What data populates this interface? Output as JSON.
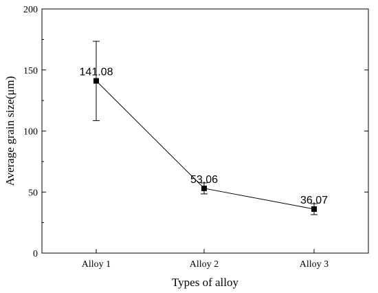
{
  "chart_data": {
    "type": "line",
    "categories": [
      "Alloy 1",
      "Alloy 2",
      "Alloy 3"
    ],
    "series": [
      {
        "values": [
          141.08,
          53.06,
          36.07
        ],
        "error_low": [
          108.5,
          48.5,
          31.5
        ],
        "error_high": [
          173.5,
          57.5,
          40.5
        ],
        "data_labels": [
          "141.08",
          "53.06",
          "36.07"
        ]
      }
    ],
    "xlabel": "Types of alloy",
    "ylabel": "Average grain size(μm)",
    "ylim": [
      0,
      200
    ],
    "yticks": [
      "0",
      "50",
      "100",
      "150",
      "200"
    ],
    "ytick_values": [
      0,
      50,
      100,
      150,
      200
    ],
    "grid": false,
    "colors": {
      "line": "#000000",
      "marker": "#000000",
      "axis": "#000000"
    }
  }
}
